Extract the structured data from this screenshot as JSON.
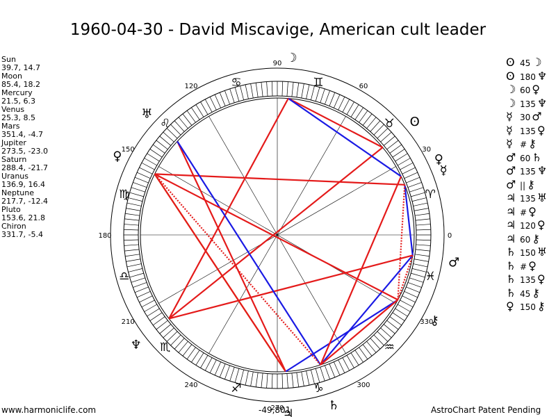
{
  "title": "1960-04-30 - David Miscavige, American cult leader",
  "planets": [
    {
      "name": "Sun",
      "coords": "39.7, 14.7",
      "lon": 39.7,
      "glyph": "ʘ"
    },
    {
      "name": "Moon",
      "coords": "85.4, 18.2",
      "lon": 85.4,
      "glyph": "☽"
    },
    {
      "name": "Mercury",
      "coords": "21.5, 6.3",
      "lon": 21.5,
      "glyph": "☿"
    },
    {
      "name": "Venus",
      "coords": "25.3, 8.5",
      "lon": 25.3,
      "glyph": "♀"
    },
    {
      "name": "Mars",
      "coords": "351.4, -4.7",
      "lon": 351.4,
      "glyph": "♂"
    },
    {
      "name": "Jupiter",
      "coords": "273.5, -23.0",
      "lon": 273.5,
      "glyph": "♃"
    },
    {
      "name": "Saturn",
      "coords": "288.4, -21.7",
      "lon": 288.4,
      "glyph": "♄"
    },
    {
      "name": "Uranus",
      "coords": "136.9, 16.4",
      "lon": 136.9,
      "glyph": "♅"
    },
    {
      "name": "Neptune",
      "coords": "217.7, -12.4",
      "lon": 217.7,
      "glyph": "♆"
    },
    {
      "name": "Pluto",
      "coords": "153.6, 21.8",
      "lon": 153.6,
      "glyph": "♀"
    },
    {
      "name": "Chiron",
      "coords": "331.7, -5.4",
      "lon": 331.7,
      "glyph": "⚷"
    }
  ],
  "aspects": [
    {
      "p1": "ʘ",
      "angle": "45",
      "p2": "☽",
      "a": "Sun",
      "b": "Moon",
      "color": "#e41a1a"
    },
    {
      "p1": "ʘ",
      "angle": "180",
      "p2": "♆",
      "a": "Sun",
      "b": "Neptune",
      "color": "#e41a1a"
    },
    {
      "p1": "☽",
      "angle": "60",
      "p2": "♀",
      "a": "Moon",
      "b": "Venus",
      "color": "#1a1ae4"
    },
    {
      "p1": "☽",
      "angle": "135",
      "p2": "♆",
      "a": "Moon",
      "b": "Neptune",
      "color": "#e41a1a"
    },
    {
      "p1": "☿",
      "angle": "30",
      "p2": "♂",
      "a": "Mercury",
      "b": "Mars",
      "color": "#1a1ae4"
    },
    {
      "p1": "☿",
      "angle": "135",
      "p2": "♀",
      "a": "Mercury",
      "b": "Pluto",
      "color": "#e41a1a"
    },
    {
      "p1": "☿",
      "angle": "#",
      "p2": "⚷",
      "a": "Mercury",
      "b": "Chiron",
      "color": "#e41a1a",
      "dotted": true
    },
    {
      "p1": "♂",
      "angle": "60",
      "p2": "♄",
      "a": "Mars",
      "b": "Saturn",
      "color": "#1a1ae4"
    },
    {
      "p1": "♂",
      "angle": "135",
      "p2": "♆",
      "a": "Mars",
      "b": "Neptune",
      "color": "#e41a1a"
    },
    {
      "p1": "♂",
      "angle": "||",
      "p2": "⚷",
      "a": "Mars",
      "b": "Chiron",
      "color": "#e41a1a",
      "dotted": true
    },
    {
      "p1": "♃",
      "angle": "135",
      "p2": "♅",
      "a": "Jupiter",
      "b": "Uranus",
      "color": "#e41a1a"
    },
    {
      "p1": "♃",
      "angle": "#",
      "p2": "♀",
      "a": "Jupiter",
      "b": "Pluto",
      "color": "#d4951e"
    },
    {
      "p1": "♃",
      "angle": "120",
      "p2": "♀",
      "a": "Jupiter",
      "b": "Pluto",
      "color": "#e41a1a"
    },
    {
      "p1": "♃",
      "angle": "60",
      "p2": "⚷",
      "a": "Jupiter",
      "b": "Chiron",
      "color": "#1a1ae4"
    },
    {
      "p1": "♄",
      "angle": "150",
      "p2": "♅",
      "a": "Saturn",
      "b": "Uranus",
      "color": "#1a1ae4"
    },
    {
      "p1": "♄",
      "angle": "#",
      "p2": "♀",
      "a": "Saturn",
      "b": "Pluto",
      "color": "#e41a1a",
      "dotted": true
    },
    {
      "p1": "♄",
      "angle": "135",
      "p2": "♀",
      "a": "Saturn",
      "b": "Venus",
      "color": "#e41a1a"
    },
    {
      "p1": "♄",
      "angle": "45",
      "p2": "⚷",
      "a": "Saturn",
      "b": "Chiron",
      "color": "#e41a1a"
    },
    {
      "p1": "♀",
      "angle": "150",
      "p2": "⚷",
      "a": "Pluto",
      "b": "Chiron",
      "color": "#e41a1a"
    }
  ],
  "degree_labels": [
    "0",
    "30",
    "60",
    "90",
    "120",
    "150",
    "180",
    "210",
    "240",
    "270",
    "300",
    "330"
  ],
  "zodiac_glyphs": [
    "♈",
    "♉",
    "♊",
    "♋",
    "♌",
    "♍",
    "♎",
    "♏",
    "♐",
    "♑",
    "♒",
    "♓"
  ],
  "footer": {
    "left": "www.harmoniclife.com",
    "center": "-49,801",
    "right": "AstroChart Patent Pending"
  }
}
